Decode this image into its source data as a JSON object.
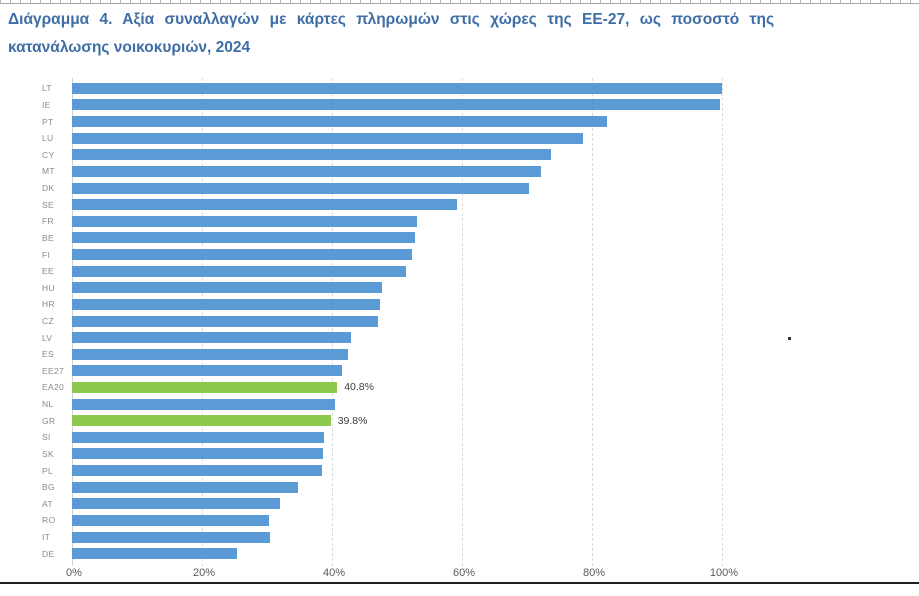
{
  "title": {
    "line1": "Διάγραμμα 4. Αξία συναλλαγών με κάρτες πληρωμών στις χώρες της ΕΕ-27, ως ποσοστό της",
    "line2": "κατανάλωσης νοικοκυριών, 2024"
  },
  "chart_data": {
    "type": "bar",
    "orientation": "horizontal",
    "title": "Διάγραμμα 4. Αξία συναλλαγών με κάρτες πληρωμών στις χώρες της ΕΕ-27, ως ποσοστό της κατανάλωσης νοικοκυριών, 2024",
    "categories": [
      "LT",
      "IE",
      "PT",
      "LU",
      "CY",
      "MT",
      "DK",
      "SE",
      "FR",
      "BE",
      "FI",
      "EE",
      "HU",
      "HR",
      "CZ",
      "LV",
      "ES",
      "EE27",
      "EA20",
      "NL",
      "GR",
      "SI",
      "SK",
      "PL",
      "BG",
      "AT",
      "RO",
      "IT",
      "DE"
    ],
    "values": [
      100.0,
      99.7,
      82.3,
      78.6,
      73.7,
      72.2,
      70.3,
      59.2,
      53.0,
      52.7,
      52.3,
      51.4,
      47.7,
      47.4,
      47.0,
      42.9,
      42.4,
      41.6,
      40.8,
      40.5,
      39.8,
      38.8,
      38.6,
      38.4,
      34.7,
      32.0,
      30.3,
      30.4,
      25.4
    ],
    "highlighted_categories": [
      "EA20",
      "GR"
    ],
    "data_labels": {
      "EA20": "40.8%",
      "GR": "39.8%"
    },
    "x_ticks": [
      0,
      20,
      40,
      60,
      80,
      100
    ],
    "x_tick_labels": [
      "0%",
      "20%",
      "40%",
      "60%",
      "80%",
      "100%"
    ],
    "xlim": [
      0,
      100
    ],
    "grid": "vertical-dashed",
    "legend": "none",
    "colors": {
      "bar": "#5b9bd5",
      "highlight": "#8dc94e"
    }
  }
}
